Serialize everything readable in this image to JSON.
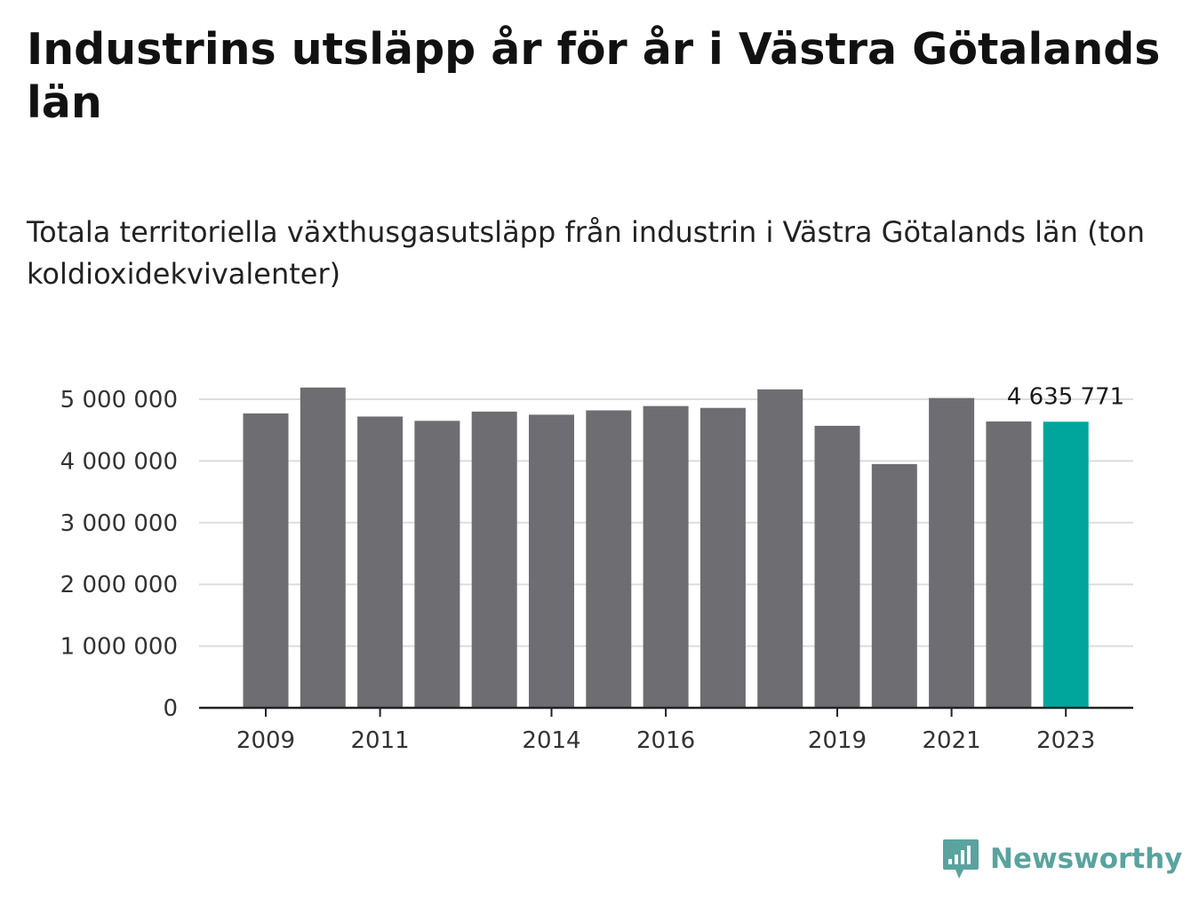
{
  "header": {
    "title": "Industrins utsläpp år för år i Västra Götalands län",
    "subtitle": "Totala territoriella växthusgasutsläpp från industrin i Västra Götalands län (ton koldioxidekvivalenter)"
  },
  "brand": {
    "name": "Newsworthy",
    "icon": "newsworthy-logo-icon",
    "color": "#5aa39e"
  },
  "colors": {
    "bar": "#6e6d72",
    "highlight": "#00a69c",
    "grid": "#dddddd",
    "axis": "#222222"
  },
  "chart_data": {
    "type": "bar",
    "categories": [
      "2009",
      "2010",
      "2011",
      "2012",
      "2013",
      "2014",
      "2015",
      "2016",
      "2017",
      "2018",
      "2019",
      "2020",
      "2021",
      "2022",
      "2023"
    ],
    "x_tick_labels": [
      "2009",
      "2011",
      "2014",
      "2016",
      "2019",
      "2021",
      "2023"
    ],
    "values": [
      4770000,
      5190000,
      4720000,
      4650000,
      4800000,
      4750000,
      4820000,
      4890000,
      4860000,
      5160000,
      4570000,
      3950000,
      5020000,
      4640000,
      4635771
    ],
    "highlight_index": 14,
    "value_label": "4 635 771",
    "y_ticks": [
      0,
      1000000,
      2000000,
      3000000,
      4000000,
      5000000
    ],
    "y_tick_labels": [
      "0",
      "1 000 000",
      "2 000 000",
      "3 000 000",
      "4 000 000",
      "5 000 000"
    ],
    "ylim": [
      0,
      5000000
    ],
    "grid": true,
    "legend": "none"
  }
}
